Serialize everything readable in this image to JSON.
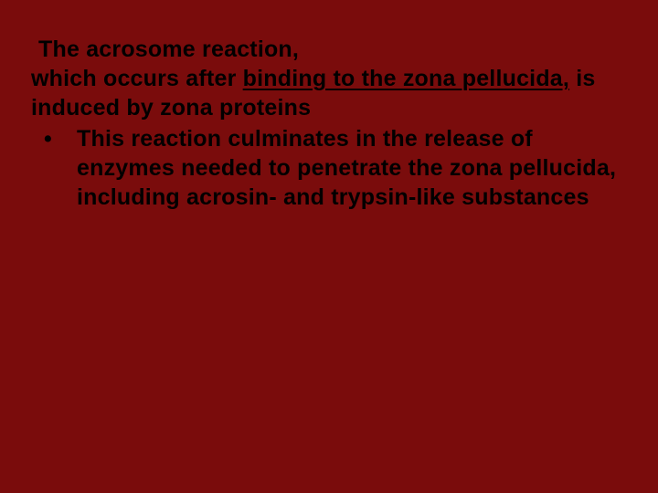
{
  "slide": {
    "background_color": "#7a0c0c",
    "text_color": "#000000",
    "font_family": "Verdana",
    "font_size_pt": 25,
    "font_weight": 700,
    "line_height": 1.28,
    "title_line1": "The acrosome reaction,",
    "title_line2a": " which occurs after ",
    "title_underlined": "binding to the zona pellucida,",
    "title_line2b": " is induced by zona proteins",
    "bullet_marker": "•",
    "bullet_text": " This reaction culminates in the release of enzymes needed to penetrate the zona pellucida, including acrosin- and trypsin-like substances",
    "underline_color": "#000000"
  }
}
